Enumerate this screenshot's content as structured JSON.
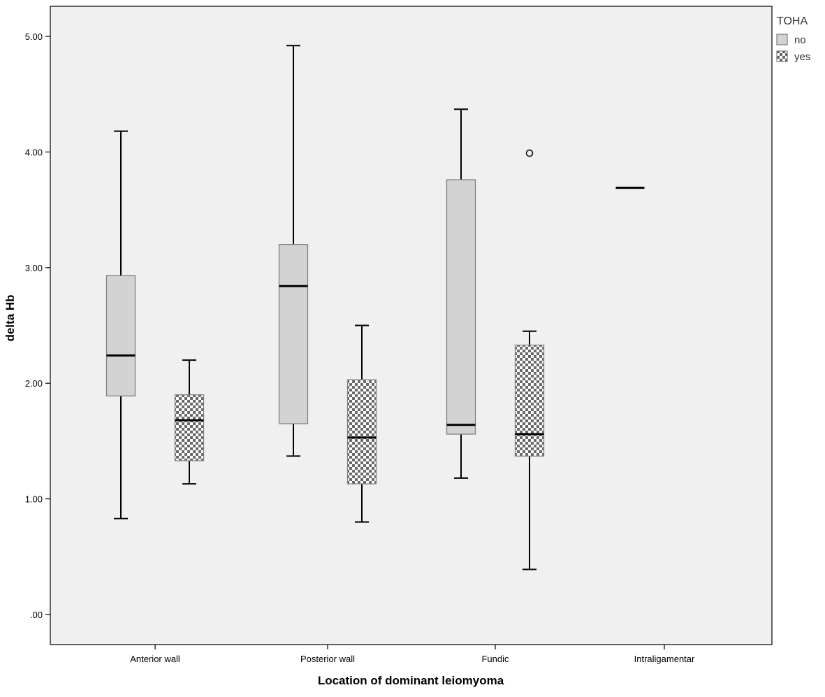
{
  "chart_data": {
    "type": "boxplot",
    "xlabel": "Location of dominant leiomyoma",
    "ylabel": "delta Hb",
    "ylim": [
      -0.26,
      5.26
    ],
    "y_ticks": [
      0,
      1,
      2,
      3,
      4,
      5
    ],
    "y_tick_labels": [
      ".00",
      "1.00",
      "2.00",
      "3.00",
      "4.00",
      "5.00"
    ],
    "categories": [
      "Anterior wall",
      "Posterior wall",
      "Fundic",
      "Intraligamentar"
    ],
    "legend": {
      "title": "TOHA",
      "position": "top-right",
      "entries": [
        "no",
        "yes"
      ]
    },
    "series": [
      {
        "name": "no",
        "fill": "#d3d3d3",
        "pattern": "solid",
        "boxes": [
          {
            "category": "Anterior wall",
            "min": 0.83,
            "q1": 1.89,
            "median": 2.24,
            "q3": 2.93,
            "max": 4.18,
            "outliers": []
          },
          {
            "category": "Posterior wall",
            "min": 1.37,
            "q1": 1.65,
            "median": 2.84,
            "q3": 3.2,
            "max": 4.92,
            "outliers": []
          },
          {
            "category": "Fundic",
            "min": 1.18,
            "q1": 1.56,
            "median": 1.64,
            "q3": 3.76,
            "max": 4.37,
            "outliers": []
          },
          {
            "category": "Intraligamentar",
            "min": 3.69,
            "q1": 3.69,
            "median": 3.69,
            "q3": 3.69,
            "max": 3.69,
            "outliers": []
          }
        ]
      },
      {
        "name": "yes",
        "fill": "#777777",
        "pattern": "checker",
        "boxes": [
          {
            "category": "Anterior wall",
            "min": 1.13,
            "q1": 1.33,
            "median": 1.68,
            "q3": 1.9,
            "max": 2.2,
            "outliers": []
          },
          {
            "category": "Posterior wall",
            "min": 0.8,
            "q1": 1.13,
            "median": 1.53,
            "q3": 2.03,
            "max": 2.5,
            "outliers": []
          },
          {
            "category": "Fundic",
            "min": 0.39,
            "q1": 1.37,
            "median": 1.56,
            "q3": 2.33,
            "max": 2.45,
            "outliers": [
              3.99
            ]
          }
        ]
      }
    ],
    "colors": {
      "plot_background": "#f0f0f0",
      "axis": "#000000",
      "box_edge": "#808080"
    }
  }
}
